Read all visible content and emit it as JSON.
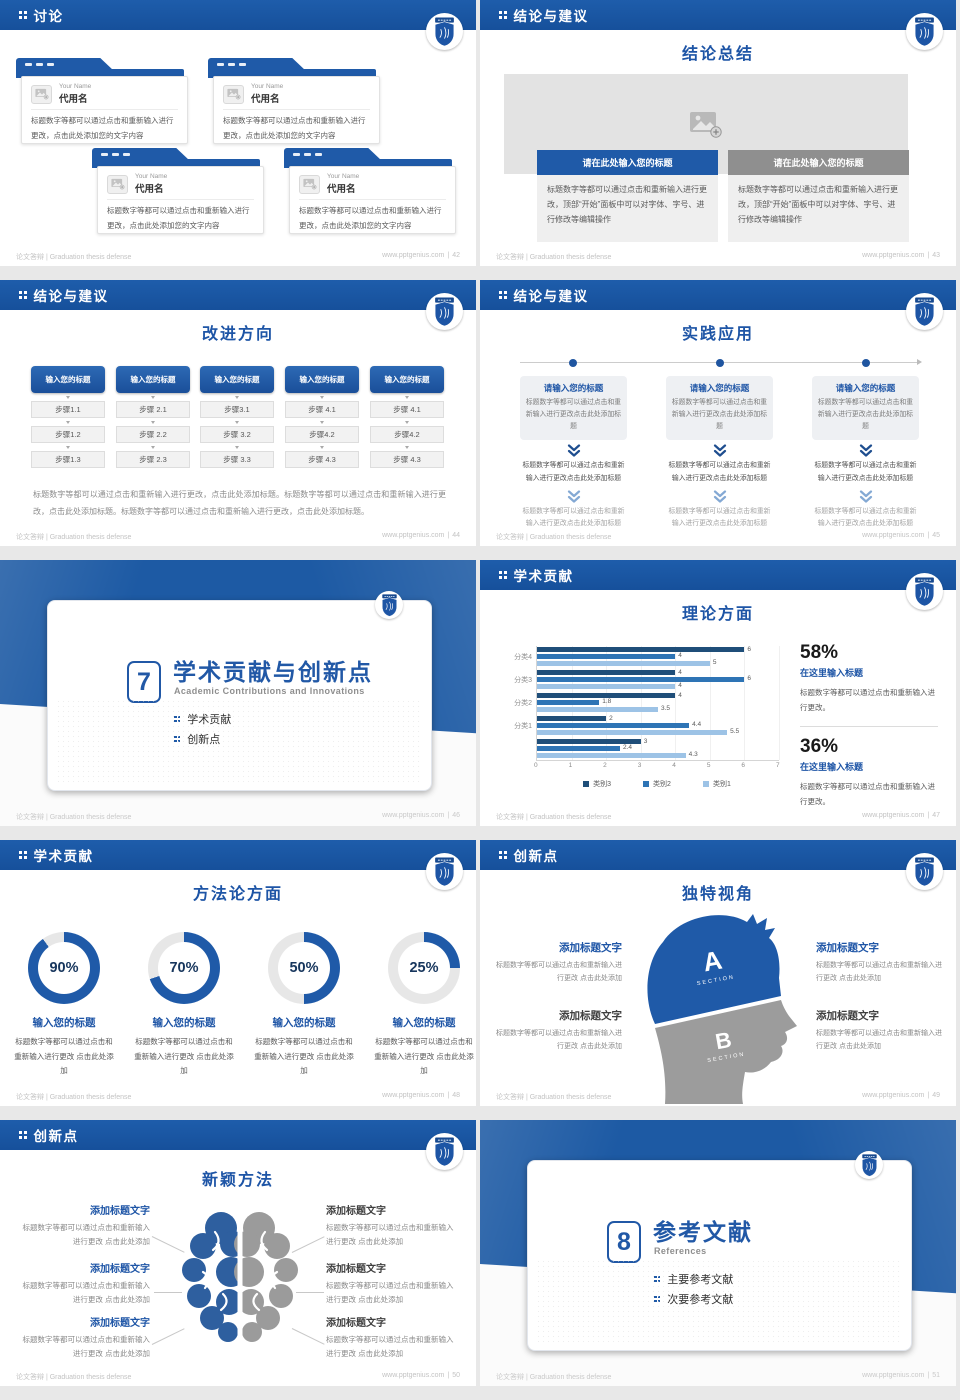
{
  "footer": {
    "brand": "论文答辩 | Graduation thesis defense",
    "site": "www.pptgenius.com",
    "sep": "|"
  },
  "colors": {
    "header_blue": "#1b57a1",
    "accent_blue": "#1f5aa8",
    "bar_dark": "#1f4e79",
    "bar_mid": "#2e74b5",
    "bar_light": "#9dc3e6",
    "gray_bar": "#8f8f8f",
    "donut_track": "#e7e7e7",
    "head_gray": "#9c9c9c"
  },
  "slides": {
    "discussion": {
      "header": "讨论",
      "page": "42",
      "cards": [
        {
          "name_en": "Your Name",
          "name_zh": "代用名",
          "body": "标题数字等都可以通过点击和重新输入进行更改，点击此处添加您的文字内容"
        },
        {
          "name_en": "Your Name",
          "name_zh": "代用名",
          "body": "标题数字等都可以通过点击和重新输入进行更改，点击此处添加您的文字内容"
        },
        {
          "name_en": "Your Name",
          "name_zh": "代用名",
          "body": "标题数字等都可以通过点击和重新输入进行更改，点击此处添加您的文字内容"
        },
        {
          "name_en": "Your Name",
          "name_zh": "代用名",
          "body": "标题数字等都可以通过点击和重新输入进行更改，点击此处添加您的文字内容"
        }
      ]
    },
    "summary": {
      "header": "结论与建议",
      "page": "43",
      "title": "结论总结",
      "blocks": [
        {
          "bar": "请在此处输入您的标题",
          "body": "标题数字等都可以通过点击和重新输入进行更改，顶部“开始”面板中可以对字体、字号、进行修改等编辑操作"
        },
        {
          "bar": "请在此处输入您的标题",
          "body": "标题数字等都可以通过点击和重新输入进行更改，顶部“开始”面板中可以对字体、字号、进行修改等编辑操作"
        }
      ]
    },
    "improve": {
      "header": "结论与建议",
      "page": "44",
      "title": "改进方向",
      "cols": [
        {
          "title": "输入您的标题",
          "steps": [
            "步骤1.1",
            "步骤1.2",
            "步骤1.3"
          ]
        },
        {
          "title": "输入您的标题",
          "steps": [
            "步骤 2.1",
            "步骤 2.2",
            "步骤 2.3"
          ]
        },
        {
          "title": "输入您的标题",
          "steps": [
            "步骤3.1",
            "步骤 3.2",
            "步骤 3.3"
          ]
        },
        {
          "title": "输入您的标题",
          "steps": [
            "步骤 4.1",
            "步骤4.2",
            "步骤 4.3"
          ]
        },
        {
          "title": "输入您的标题",
          "steps": [
            "步骤 4.1",
            "步骤4.2",
            "步骤 4.3"
          ]
        }
      ],
      "note": "标题数字等都可以通过点击和重新输入进行更改，点击此处添加标题。标题数字等都可以通过点击和重新输入进行更改，点击此处添加标题。标题数字等都可以通过点击和重新输入进行更改，点击此处添加标题。"
    },
    "practice": {
      "header": "结论与建议",
      "page": "45",
      "title": "实践应用",
      "cols": [
        {
          "title": "请输入您的标题",
          "box": "标题数字等都可以通过点击和重新输入进行更改点击此处添加标题",
          "mid": "标题数字等都可以通过点击和重新输入进行更改点击此处添加标题",
          "low": "标题数字等都可以通过点击和重新输入进行更改点击此处添加标题"
        },
        {
          "title": "请输入您的标题",
          "box": "标题数字等都可以通过点击和重新输入进行更改点击此处添加标题",
          "mid": "标题数字等都可以通过点击和重新输入进行更改点击此处添加标题",
          "low": "标题数字等都可以通过点击和重新输入进行更改点击此处添加标题"
        },
        {
          "title": "请输入您的标题",
          "box": "标题数字等都可以通过点击和重新输入进行更改点击此处添加标题",
          "mid": "标题数字等都可以通过点击和重新输入进行更改点击此处添加标题",
          "low": "标题数字等都可以通过点击和重新输入进行更改点击此处添加标题"
        }
      ]
    },
    "section7": {
      "page": "46",
      "number": "7",
      "title": "学术贡献与创新点",
      "subtitle": "Academic Contributions and Innovations",
      "bullets": [
        "学术贡献",
        "创新点"
      ]
    },
    "theory": {
      "header": "学术贡献",
      "page": "47",
      "title": "理论方面",
      "stats": [
        {
          "pct": "58%",
          "title": "在这里输入标题",
          "body": "标题数字等都可以通过点击和重新输入进行更改。"
        },
        {
          "pct": "36%",
          "title": "在这里输入标题",
          "body": "标题数字等都可以通过点击和重新输入进行更改。"
        }
      ]
    },
    "method": {
      "header": "学术贡献",
      "page": "48",
      "title": "方法论方面",
      "donuts": [
        {
          "pct": 90,
          "label": "90%",
          "title": "输入您的标题",
          "body": "标题数字等都可以通过点击和重新输入进行更改 点击此处添加"
        },
        {
          "pct": 70,
          "label": "70%",
          "title": "输入您的标题",
          "body": "标题数字等都可以通过点击和重新输入进行更改 点击此处添加"
        },
        {
          "pct": 50,
          "label": "50%",
          "title": "输入您的标题",
          "body": "标题数字等都可以通过点击和重新输入进行更改 点击此处添加"
        },
        {
          "pct": 25,
          "label": "25%",
          "title": "输入您的标题",
          "body": "标题数字等都可以通过点击和重新输入进行更改 点击此处添加"
        }
      ]
    },
    "view": {
      "header": "创新点",
      "page": "49",
      "title": "独特视角",
      "head": {
        "a": "A",
        "b": "B",
        "section": "SECTION"
      },
      "items": [
        {
          "title": "添加标题文字",
          "body": "标题数字等都可以通过点击和重新输入进行更改 点击此处添加"
        },
        {
          "title": "添加标题文字",
          "body": "标题数字等都可以通过点击和重新输入进行更改 点击此处添加"
        },
        {
          "title": "添加标题文字",
          "body": "标题数字等都可以通过点击和重新输入进行更改 点击此处添加"
        },
        {
          "title": "添加标题文字",
          "body": "标题数字等都可以通过点击和重新输入进行更改 点击此处添加"
        }
      ]
    },
    "brain": {
      "header": "创新点",
      "page": "50",
      "title": "新颖方法",
      "items": [
        {
          "title": "添加标题文字",
          "body": "标题数字等都可以通过点击和重新输入进行更改 点击此处添加"
        },
        {
          "title": "添加标题文字",
          "body": "标题数字等都可以通过点击和重新输入进行更改 点击此处添加"
        },
        {
          "title": "添加标题文字",
          "body": "标题数字等都可以通过点击和重新输入进行更改 点击此处添加"
        },
        {
          "title": "添加标题文字",
          "body": "标题数字等都可以通过点击和重新输入进行更改 点击此处添加"
        },
        {
          "title": "添加标题文字",
          "body": "标题数字等都可以通过点击和重新输入进行更改 点击此处添加"
        },
        {
          "title": "添加标题文字",
          "body": "标题数字等都可以通过点击和重新输入进行更改 点击此处添加"
        }
      ]
    },
    "section8": {
      "page": "51",
      "number": "8",
      "title": "参考文献",
      "subtitle": "References",
      "bullets": [
        "主要参考文献",
        "次要参考文献"
      ]
    }
  },
  "chart_data": {
    "type": "bar",
    "orientation": "horizontal",
    "title": "理论方面",
    "categories": [
      "分类4",
      "分类3",
      "分类2",
      "分类1",
      ""
    ],
    "series": [
      {
        "name": "类别3",
        "color": "#1f4e79",
        "values": [
          6,
          4,
          4,
          2,
          3
        ]
      },
      {
        "name": "类别2",
        "color": "#2e74b5",
        "values": [
          4,
          6,
          1.8,
          4.4,
          2.4
        ]
      },
      {
        "name": "类别1",
        "color": "#9dc3e6",
        "values": [
          5,
          4,
          3.5,
          5.5,
          4.3
        ]
      }
    ],
    "xmax": 7,
    "xticks": [
      0,
      1,
      2,
      3,
      4,
      5,
      6,
      7
    ],
    "grid": true,
    "legend_position": "bottom"
  }
}
